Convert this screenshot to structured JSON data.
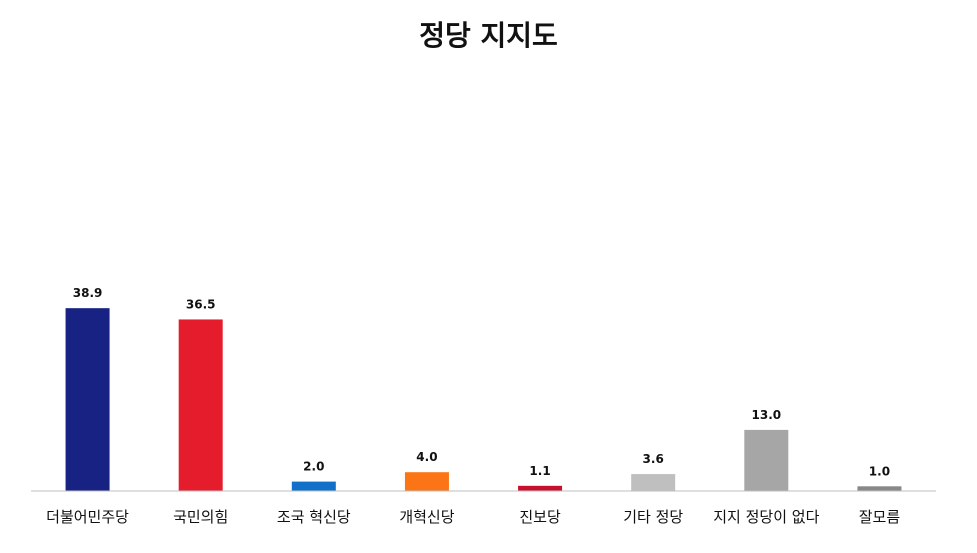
{
  "chart_data": {
    "type": "bar",
    "title": "정당 지지도",
    "categories": [
      "더불어민주당",
      "국민의힘",
      "조국 혁신당",
      "개혁신당",
      "진보당",
      "기타 정당",
      "지지 정당이 없다",
      "잘모름"
    ],
    "values": [
      38.9,
      36.5,
      2.0,
      4.0,
      1.1,
      3.6,
      13.0,
      1.0
    ],
    "value_labels": [
      "38.9",
      "36.5",
      "2.0",
      "4.0",
      "1.1",
      "3.6",
      "13.0",
      "1.0"
    ],
    "colors": [
      "#172283",
      "#e51c2b",
      "#1270c8",
      "#fb7415",
      "#c8102e",
      "#bfbfbf",
      "#a6a6a6",
      "#888888"
    ],
    "xlabel": "",
    "ylabel": "",
    "ylim": [
      0,
      100
    ],
    "grid": false,
    "legend": "none"
  }
}
